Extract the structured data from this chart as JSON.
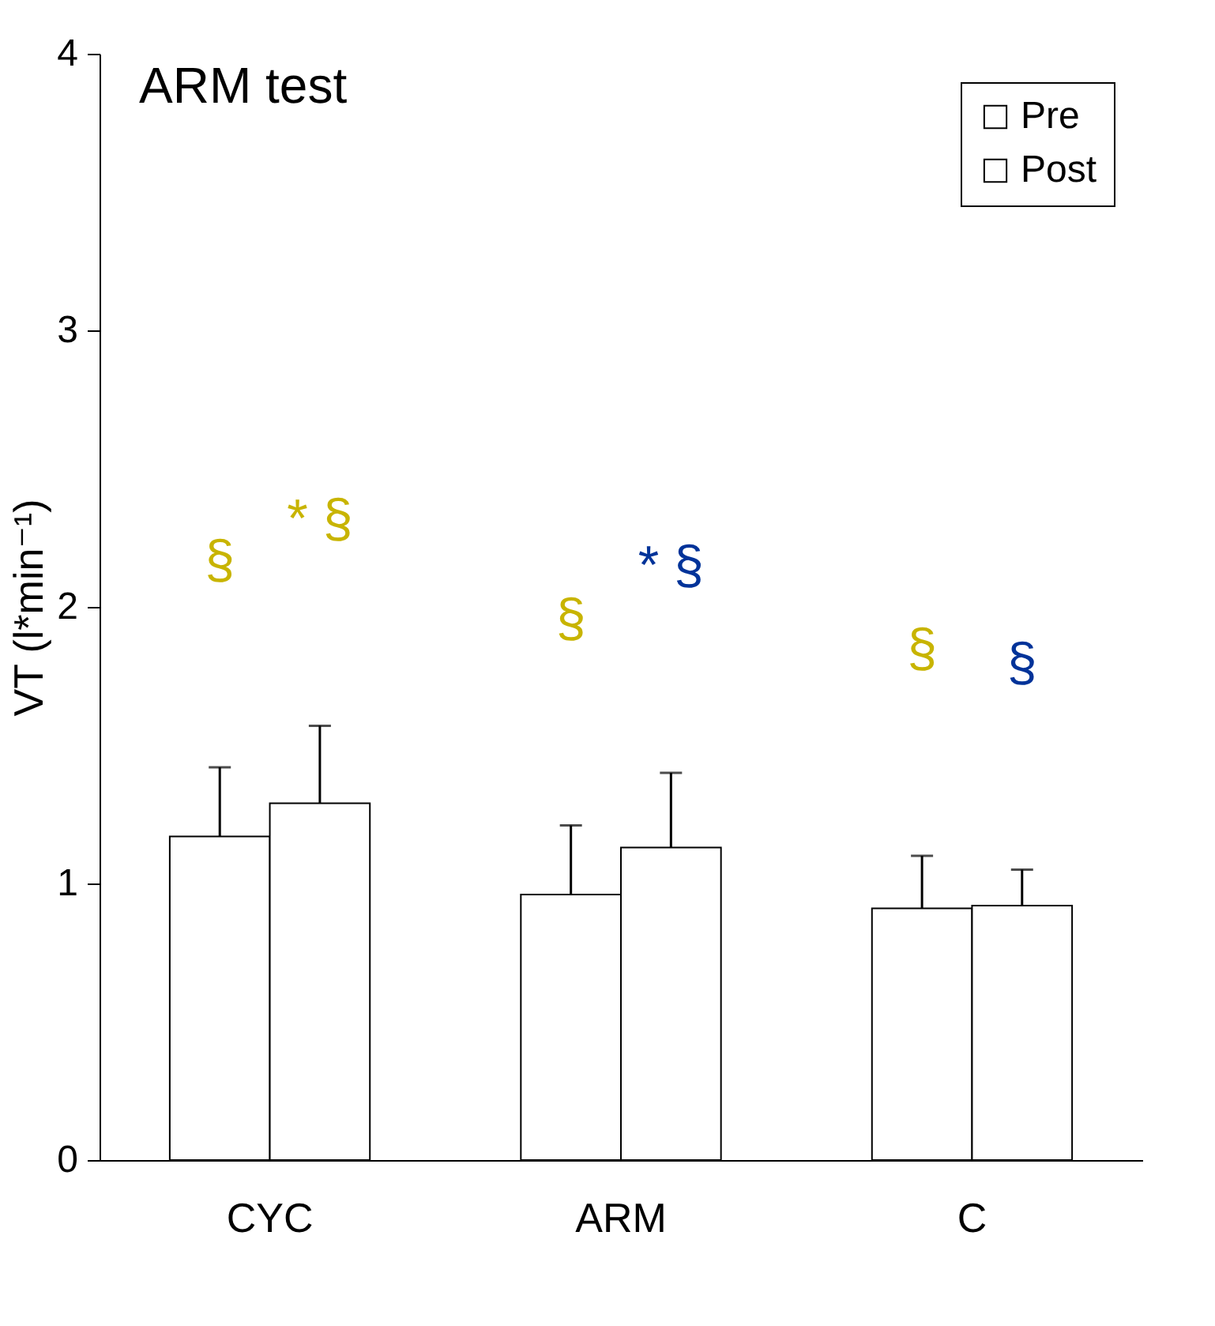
{
  "chart_data": {
    "type": "bar",
    "title": "ARM test",
    "ylabel": "VT (l*min⁻¹)",
    "categories": [
      "CYC",
      "ARM",
      "C"
    ],
    "series": [
      {
        "name": "Pre",
        "color": "#ffffff",
        "values": [
          1.17,
          0.96,
          0.91
        ],
        "errors": [
          [
            1.17,
            1.42
          ],
          [
            0.96,
            1.21
          ],
          [
            0.91,
            1.1
          ]
        ]
      },
      {
        "name": "Post",
        "color": "#ffffff",
        "values": [
          1.29,
          1.13,
          0.92
        ],
        "errors": [
          [
            1.29,
            1.57
          ],
          [
            1.13,
            1.4
          ],
          [
            0.92,
            1.05
          ]
        ]
      }
    ],
    "ylim": [
      0,
      4
    ],
    "yticks": [
      0,
      1,
      2,
      3,
      4
    ],
    "grid": false,
    "legend": "top right",
    "annotations": [
      "§",
      "* §",
      "§",
      "* §",
      "§",
      "§"
    ]
  }
}
